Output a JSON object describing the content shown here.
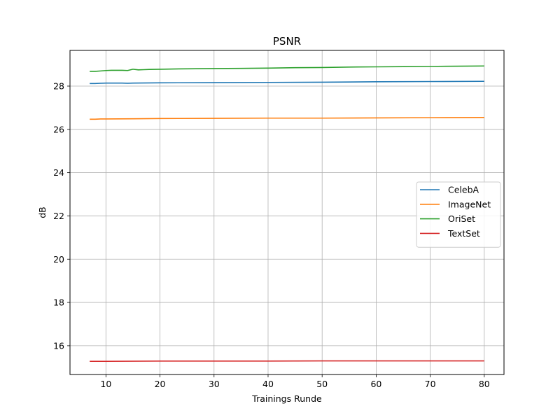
{
  "chart_data": {
    "type": "line",
    "title": "PSNR",
    "xlabel": "Trainings Runde",
    "ylabel": "dB",
    "xlim": [
      3.35,
      83.65
    ],
    "ylim": [
      14.67,
      29.65
    ],
    "xticks": [
      10,
      20,
      30,
      40,
      50,
      60,
      70,
      80
    ],
    "yticks": [
      16,
      18,
      20,
      22,
      24,
      26,
      28
    ],
    "grid": true,
    "legend_position": "center-right",
    "series": [
      {
        "name": "CelebA",
        "color": "#1f77b4",
        "x": [
          7,
          8,
          9,
          10,
          11,
          12,
          13,
          14,
          15,
          20,
          30,
          40,
          50,
          60,
          70,
          80
        ],
        "y": [
          28.12,
          28.12,
          28.13,
          28.14,
          28.14,
          28.14,
          28.14,
          28.13,
          28.14,
          28.15,
          28.16,
          28.17,
          28.18,
          28.2,
          28.21,
          28.22
        ]
      },
      {
        "name": "ImageNet",
        "color": "#ff7f0e",
        "x": [
          7,
          8,
          9,
          10,
          15,
          20,
          30,
          40,
          50,
          60,
          70,
          80
        ],
        "y": [
          26.47,
          26.47,
          26.48,
          26.48,
          26.49,
          26.5,
          26.51,
          26.52,
          26.52,
          26.53,
          26.54,
          26.55
        ]
      },
      {
        "name": "OriSet",
        "color": "#2ca02c",
        "x": [
          7,
          8,
          9,
          10,
          11,
          12,
          13,
          14,
          15,
          16,
          17,
          18,
          20,
          25,
          30,
          35,
          40,
          45,
          50,
          55,
          60,
          65,
          70,
          75,
          80
        ],
        "y": [
          28.68,
          28.68,
          28.7,
          28.72,
          28.73,
          28.73,
          28.73,
          28.72,
          28.78,
          28.75,
          28.76,
          28.77,
          28.78,
          28.8,
          28.81,
          28.82,
          28.83,
          28.85,
          28.86,
          28.88,
          28.89,
          28.9,
          28.91,
          28.92,
          28.93
        ]
      },
      {
        "name": "TextSet",
        "color": "#d62728",
        "x": [
          7,
          10,
          20,
          30,
          40,
          50,
          60,
          70,
          80
        ],
        "y": [
          15.28,
          15.28,
          15.29,
          15.29,
          15.29,
          15.3,
          15.3,
          15.3,
          15.3
        ]
      }
    ]
  }
}
